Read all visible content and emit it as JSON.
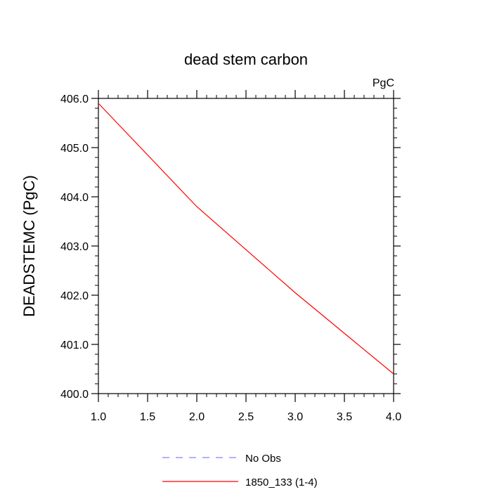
{
  "chart_data": {
    "type": "line",
    "title": "dead stem carbon",
    "units_label": "PgC",
    "xlabel": "",
    "ylabel": "DEADSTEMC  (PgC)",
    "xlim": [
      1.0,
      4.0
    ],
    "ylim": [
      400.0,
      406.0
    ],
    "x_ticks": [
      "1.0",
      "1.5",
      "2.0",
      "2.5",
      "3.0",
      "3.5",
      "4.0"
    ],
    "y_ticks": [
      "400.0",
      "401.0",
      "402.0",
      "403.0",
      "404.0",
      "405.0",
      "406.0"
    ],
    "grid": false,
    "legend_position": "bottom-center",
    "series": [
      {
        "name": "1850_133 (1-4)",
        "color": "#ff0000",
        "style": "solid",
        "x": [
          1.0,
          2.0,
          3.0,
          4.0
        ],
        "y": [
          405.9,
          403.8,
          402.05,
          400.4
        ]
      }
    ],
    "legend": [
      {
        "label": "No Obs",
        "color": "#8080ff",
        "style": "dashed"
      },
      {
        "label": "1850_133 (1-4)",
        "color": "#ff0000",
        "style": "solid"
      }
    ]
  }
}
